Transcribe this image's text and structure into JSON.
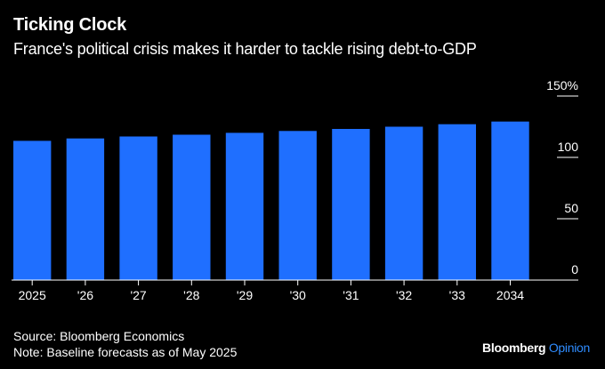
{
  "header": {
    "title": "Ticking Clock",
    "subtitle": "France's political crisis makes it harder to tackle rising debt-to-GDP"
  },
  "footer": {
    "source": "Source: Bloomberg Economics",
    "note": "Note: Baseline forecasts as of May 2025",
    "brand_main": "Bloomberg",
    "brand_sub": "Opinion"
  },
  "colors": {
    "background": "#000000",
    "bar": "#1f6fff",
    "text": "#ffffff",
    "brand_accent": "#2f8cff"
  },
  "chart_data": {
    "type": "bar",
    "categories": [
      "2025",
      "'26",
      "'27",
      "'28",
      "'29",
      "'30",
      "'31",
      "'32",
      "'33",
      "2034"
    ],
    "values": [
      113.5,
      115.4,
      117.0,
      118.5,
      120.0,
      121.5,
      123.2,
      125.0,
      127.0,
      129.2
    ],
    "ylim": [
      0,
      150
    ],
    "yticks": [
      0,
      50,
      100,
      150
    ],
    "ytick_labels": [
      "0",
      "50",
      "100",
      "150%"
    ],
    "y_axis_position": "right",
    "grid": false
  }
}
